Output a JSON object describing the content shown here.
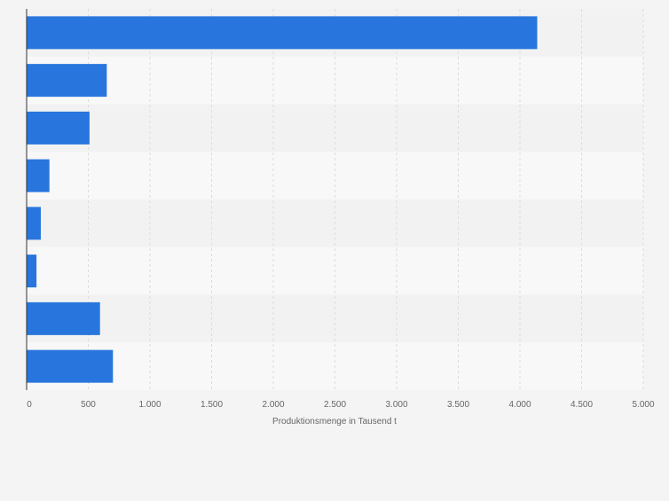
{
  "chart_data": {
    "type": "bar",
    "orientation": "horizontal",
    "categories": [
      "",
      "",
      "",
      "",
      "",
      "",
      "",
      ""
    ],
    "values": [
      4140,
      650,
      510,
      185,
      115,
      80,
      595,
      700
    ],
    "xlabel": "Produktionsmenge in Tausend t",
    "ylabel": "",
    "xlim": [
      0,
      5000
    ],
    "x_ticks": [
      {
        "value": 0,
        "label": "0"
      },
      {
        "value": 500,
        "label": "500"
      },
      {
        "value": 1000,
        "label": "1.000"
      },
      {
        "value": 1500,
        "label": "1.500"
      },
      {
        "value": 2000,
        "label": "2.000"
      },
      {
        "value": 2500,
        "label": "2.500"
      },
      {
        "value": 3000,
        "label": "3.000"
      },
      {
        "value": 3500,
        "label": "3.500"
      },
      {
        "value": 4000,
        "label": "4.000"
      },
      {
        "value": 4500,
        "label": "4.500"
      },
      {
        "value": 5000,
        "label": "5.000"
      }
    ],
    "grid": true,
    "colors": {
      "bar": "#2876dd",
      "band_dark": "#f2f2f2",
      "band_light": "#f8f8f8",
      "grid": "#dcdcdc",
      "axis": "#333333",
      "tick_text": "#666666",
      "background": "#f4f4f4"
    }
  }
}
